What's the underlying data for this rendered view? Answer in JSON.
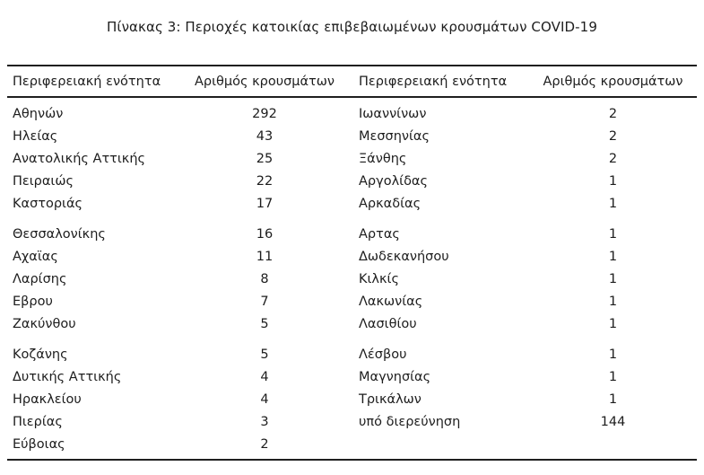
{
  "document": {
    "title": "Πίνακας 3: Περιοχές κατοικίας επιβεβαιωμένων κρουσμάτων COVID-19"
  },
  "table": {
    "headers": {
      "col1": "Περιφερειακή ενότητα",
      "col2": "Αριθμός κρουσμάτων",
      "col3": "Περιφερειακή ενότητα",
      "col4": "Αριθμός κρουσμάτων"
    },
    "rows": [
      {
        "region1": "Αθηνών",
        "count1": "292",
        "region2": "Ιωαννίνων",
        "count2": "2"
      },
      {
        "region1": "Ηλείας",
        "count1": "43",
        "region2": "Μεσσηνίας",
        "count2": "2"
      },
      {
        "region1": "Ανατολικής Αττικής",
        "count1": "25",
        "region2": "Ξάνθης",
        "count2": "2"
      },
      {
        "region1": "Πειραιώς",
        "count1": "22",
        "region2": "Αργολίδας",
        "count2": "1"
      },
      {
        "region1": "Καστοριάς",
        "count1": "17",
        "region2": "Αρκαδίας",
        "count2": "1"
      },
      {
        "region1": "Θεσσαλονίκης",
        "count1": "16",
        "region2": "Αρτας",
        "count2": "1"
      },
      {
        "region1": "Αχαϊας",
        "count1": "11",
        "region2": "Δωδεκανήσου",
        "count2": "1"
      },
      {
        "region1": "Λαρίσης",
        "count1": "8",
        "region2": "Κιλκίς",
        "count2": "1"
      },
      {
        "region1": "Εβρου",
        "count1": "7",
        "region2": "Λακωνίας",
        "count2": "1"
      },
      {
        "region1": "Ζακύνθου",
        "count1": "5",
        "region2": "Λασιθίου",
        "count2": "1"
      },
      {
        "region1": "Κοζάνης",
        "count1": "5",
        "region2": "Λέσβου",
        "count2": "1"
      },
      {
        "region1": "Δυτικής Αττικής",
        "count1": "4",
        "region2": "Μαγνησίας",
        "count2": "1"
      },
      {
        "region1": "Ηρακλείου",
        "count1": "4",
        "region2": "Τρικάλων",
        "count2": "1"
      },
      {
        "region1": "Πιερίας",
        "count1": "3",
        "region2": "υπό διερεύνηση",
        "count2": "144"
      },
      {
        "region1": "Εύβοιας",
        "count1": "2",
        "region2": "",
        "count2": ""
      }
    ]
  },
  "colors": {
    "text": "#1d1d1d",
    "rule": "#1f1f1f",
    "background": "#ffffff"
  }
}
